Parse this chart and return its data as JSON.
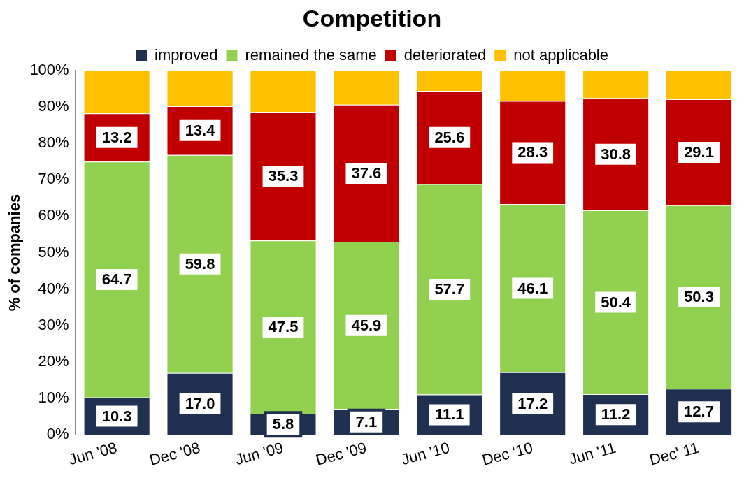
{
  "chart_data": {
    "type": "bar",
    "title": "Competition",
    "ylabel": "% of companies",
    "stacked": true,
    "legend": "top",
    "grid": false,
    "categories": [
      "Jun '08",
      "Dec '08",
      "Jun '09",
      "Dec '09",
      "Jun '10",
      "Dec '10",
      "Jun '11",
      "Dec' 11"
    ],
    "ylim": [
      0,
      100
    ],
    "yticks": [
      {
        "value": 0,
        "label": "0%"
      },
      {
        "value": 10,
        "label": "10%"
      },
      {
        "value": 20,
        "label": "20%"
      },
      {
        "value": 30,
        "label": "30%"
      },
      {
        "value": 40,
        "label": "40%"
      },
      {
        "value": 50,
        "label": "50%"
      },
      {
        "value": 60,
        "label": "60%"
      },
      {
        "value": 70,
        "label": "70%"
      },
      {
        "value": 80,
        "label": "80%"
      },
      {
        "value": 90,
        "label": "90%"
      },
      {
        "value": 100,
        "label": "100%"
      }
    ],
    "series": [
      {
        "name": "improved",
        "color": "#1f3050",
        "values": [
          10.3,
          17.0,
          5.8,
          7.1,
          11.1,
          17.2,
          11.2,
          12.7
        ],
        "value_labels": [
          "10.3",
          "17.0",
          "5.8",
          "7.1",
          "11.1",
          "17.2",
          "11.2",
          "12.7"
        ]
      },
      {
        "name": "remained the same",
        "color": "#92d050",
        "values": [
          64.7,
          59.8,
          47.5,
          45.9,
          57.7,
          46.1,
          50.4,
          50.3
        ],
        "value_labels": [
          "64.7",
          "59.8",
          "47.5",
          "45.9",
          "57.7",
          "46.1",
          "50.4",
          "50.3"
        ]
      },
      {
        "name": "deteriorated",
        "color": "#c00000",
        "values": [
          13.2,
          13.4,
          35.3,
          37.6,
          25.6,
          28.3,
          30.8,
          29.1
        ],
        "value_labels": [
          "13.2",
          "13.4",
          "35.3",
          "37.6",
          "25.6",
          "28.3",
          "30.8",
          "29.1"
        ]
      },
      {
        "name": "not applicable",
        "color": "#ffc000",
        "values": [
          11.8,
          9.8,
          11.4,
          9.4,
          5.6,
          8.4,
          7.6,
          7.9
        ]
      }
    ]
  }
}
